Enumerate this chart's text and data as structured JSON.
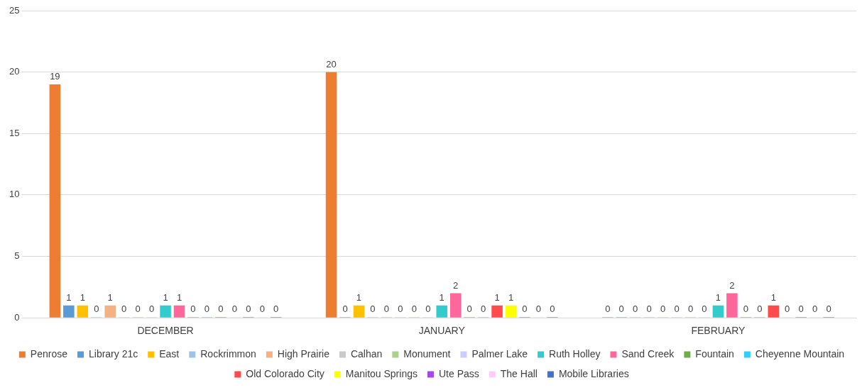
{
  "chart_data": {
    "type": "bar",
    "categories": [
      "DECEMBER",
      "JANUARY",
      "FEBRUARY"
    ],
    "series": [
      {
        "name": "Penrose",
        "color": "#ed7d31",
        "values": [
          19,
          20,
          0
        ]
      },
      {
        "name": "Library 21c",
        "color": "#5b9bd5",
        "values": [
          1,
          0,
          0
        ]
      },
      {
        "name": "East",
        "color": "#ffc000",
        "values": [
          1,
          1,
          0
        ]
      },
      {
        "name": "Rockrimmon",
        "color": "#9dc3e6",
        "values": [
          0,
          0,
          0
        ]
      },
      {
        "name": "High Prairie",
        "color": "#f4b183",
        "values": [
          1,
          0,
          0
        ]
      },
      {
        "name": "Calhan",
        "color": "#c9c9c9",
        "values": [
          0,
          0,
          0
        ]
      },
      {
        "name": "Monument",
        "color": "#a9d18e",
        "values": [
          0,
          0,
          0
        ]
      },
      {
        "name": "Palmer Lake",
        "color": "#ccccff",
        "values": [
          0,
          0,
          0
        ]
      },
      {
        "name": "Ruth Holley",
        "color": "#33cccc",
        "values": [
          1,
          1,
          1
        ]
      },
      {
        "name": "Sand Creek",
        "color": "#ff6699",
        "values": [
          1,
          2,
          2
        ]
      },
      {
        "name": "Fountain",
        "color": "#70ad47",
        "values": [
          0,
          0,
          0
        ]
      },
      {
        "name": "Cheyenne Mountain",
        "color": "#33ccff",
        "values": [
          0,
          0,
          0
        ]
      },
      {
        "name": "Old Colorado City",
        "color": "#ff4b4b",
        "values": [
          0,
          1,
          1
        ]
      },
      {
        "name": "Manitou Springs",
        "color": "#ffff00",
        "values": [
          0,
          1,
          0
        ]
      },
      {
        "name": "Ute Pass",
        "color": "#a349e6",
        "values": [
          0,
          0,
          0
        ]
      },
      {
        "name": "The Hall",
        "color": "#ffccff",
        "values": [
          0,
          0,
          0
        ]
      },
      {
        "name": "Mobile Libraries",
        "color": "#4472c4",
        "values": [
          0,
          0,
          0
        ]
      }
    ],
    "ylim": [
      0,
      25
    ],
    "yticks": [
      0,
      5,
      10,
      15,
      20,
      25
    ],
    "grid": "y",
    "legend": "bottom",
    "data_labels": true
  }
}
